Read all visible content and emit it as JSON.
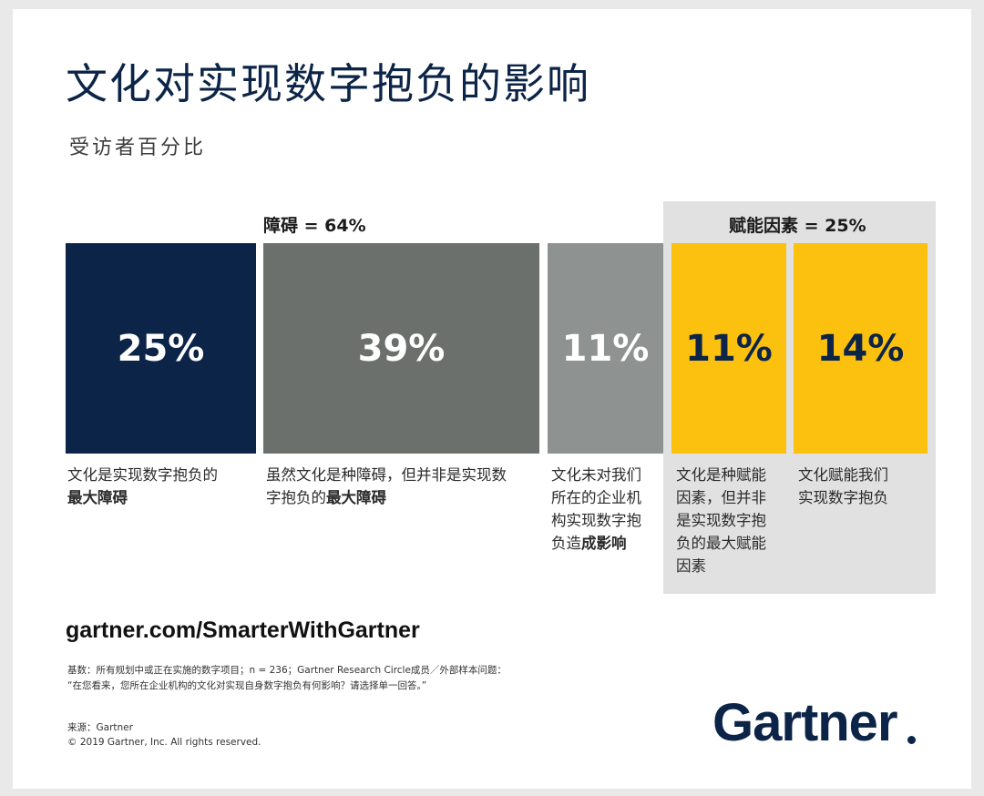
{
  "title": "文化对实现数字抱负的影响",
  "subtitle": "受访者百分比",
  "chart_data": {
    "type": "bar",
    "groups": [
      {
        "label": "障碍 = 64%",
        "total": 64,
        "bars": [
          0,
          1
        ]
      },
      {
        "label": "赋能因素 = 25%",
        "total": 25,
        "bars": [
          3,
          4
        ]
      }
    ],
    "bars": [
      {
        "value": 25,
        "value_label": "25%",
        "color": "#0c2447",
        "text_color": "#ffffff",
        "desc_normal": "文化是实现数字抱负的",
        "desc_bold": "最大障碍"
      },
      {
        "value": 39,
        "value_label": "39%",
        "color": "#6b706d",
        "text_color": "#ffffff",
        "desc_normal": "虽然文化是种障碍，但并非是实现数字抱负的",
        "desc_bold": "最大障碍"
      },
      {
        "value": 11,
        "value_label": "11%",
        "color": "#8e9290",
        "text_color": "#ffffff",
        "desc_normal": "文化未对我们所在的企业机构实现数字抱负造",
        "desc_bold": "成影响"
      },
      {
        "value": 11,
        "value_label": "11%",
        "color": "#fcc10f",
        "text_color": "#0c2447",
        "desc_normal": "文化是种赋能因素，但并非是实现数字抱负的最大赋能因素",
        "desc_bold": ""
      },
      {
        "value": 14,
        "value_label": "14%",
        "color": "#fcc10f",
        "text_color": "#0c2447",
        "desc_normal": "文化赋能我们实现数字抱负",
        "desc_bold": ""
      }
    ]
  },
  "url": "gartner.com/SmarterWithGartner",
  "footnote_line1": "基数：所有规划中或正在实施的数字项目；n = 236；Gartner Research Circle成员／外部样本问题：",
  "footnote_line2": "“在您看来，您所在企业机构的文化对实现自身数字抱负有何影响？请选择单一回答。”",
  "source": "来源：Gartner",
  "copyright": "© 2019 Gartner, Inc. All rights reserved.",
  "logo": "Gartner"
}
